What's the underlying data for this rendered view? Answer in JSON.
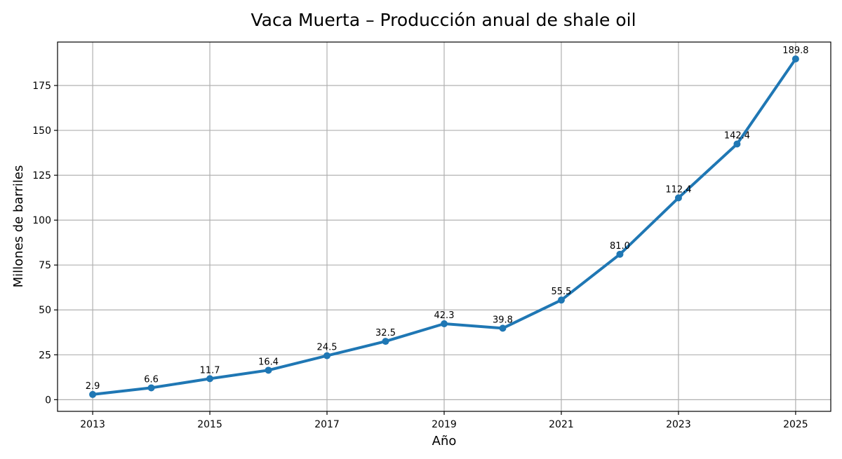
{
  "chart_data": {
    "type": "line",
    "title": "Vaca Muerta – Producción anual de shale oil",
    "xlabel": "Año",
    "ylabel": "Millones de barriles",
    "x": [
      2013,
      2014,
      2015,
      2016,
      2017,
      2018,
      2019,
      2020,
      2021,
      2022,
      2023,
      2024,
      2025
    ],
    "series": [
      {
        "values": [
          2.9,
          6.6,
          11.7,
          16.4,
          24.5,
          32.5,
          42.3,
          39.8,
          55.5,
          81.0,
          112.4,
          142.4,
          189.8
        ],
        "value_labels": [
          "2.9",
          "6.6",
          "11.7",
          "16.4",
          "24.5",
          "32.5",
          "42.3",
          "39.8",
          "55.5",
          "81.0",
          "112.4",
          "142.4",
          "189.8"
        ]
      }
    ],
    "xlim": [
      2012.4,
      2025.6
    ],
    "ylim": [
      -6.5,
      199.2
    ],
    "xticks": [
      2013,
      2015,
      2017,
      2019,
      2021,
      2023,
      2025
    ],
    "xtick_labels": [
      "2013",
      "2015",
      "2017",
      "2019",
      "2021",
      "2023",
      "2025"
    ],
    "yticks": [
      0,
      25,
      50,
      75,
      100,
      125,
      150,
      175
    ],
    "ytick_labels": [
      "0",
      "25",
      "50",
      "75",
      "100",
      "125",
      "150",
      "175"
    ],
    "grid": true,
    "colors": {
      "line": "#1f77b4",
      "grid": "#b0b0b0"
    }
  }
}
